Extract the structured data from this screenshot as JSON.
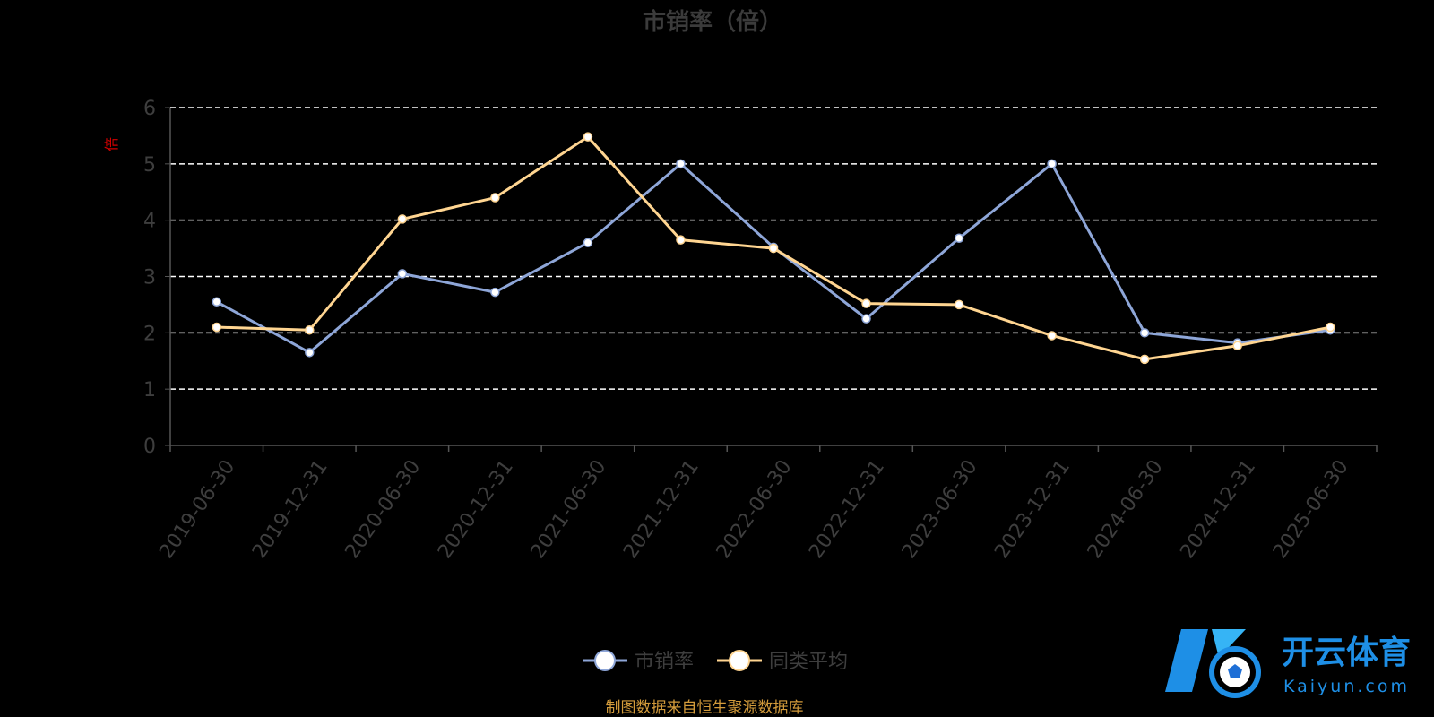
{
  "chart_data": {
    "type": "line",
    "title": "市销率（倍）",
    "ylabel": "倍",
    "ylim": [
      0,
      6
    ],
    "yticks": [
      0,
      1,
      2,
      3,
      4,
      5,
      6
    ],
    "grid": true,
    "legend_position": "bottom",
    "categories": [
      "2019-06-30",
      "2019-12-31",
      "2020-06-30",
      "2020-12-31",
      "2021-06-30",
      "2021-12-31",
      "2022-06-30",
      "2022-12-31",
      "2023-06-30",
      "2023-12-31",
      "2024-06-30",
      "2024-12-31",
      "2025-06-30"
    ],
    "series": [
      {
        "name": "市销率",
        "color": "#8ea6d8",
        "values": [
          2.55,
          1.65,
          3.05,
          2.72,
          3.6,
          5.0,
          3.52,
          2.25,
          3.68,
          5.0,
          2.0,
          1.82,
          2.05
        ]
      },
      {
        "name": "同类平均",
        "color": "#ffd591",
        "values": [
          2.1,
          2.05,
          4.02,
          4.4,
          5.48,
          3.65,
          3.5,
          2.52,
          2.5,
          1.95,
          1.53,
          1.77,
          2.1
        ]
      }
    ]
  },
  "source_note": "制图数据来自恒生聚源数据库",
  "watermark": {
    "name": "开云体育",
    "domain": "Kaiyun.com",
    "color": "#1e8fe6"
  }
}
